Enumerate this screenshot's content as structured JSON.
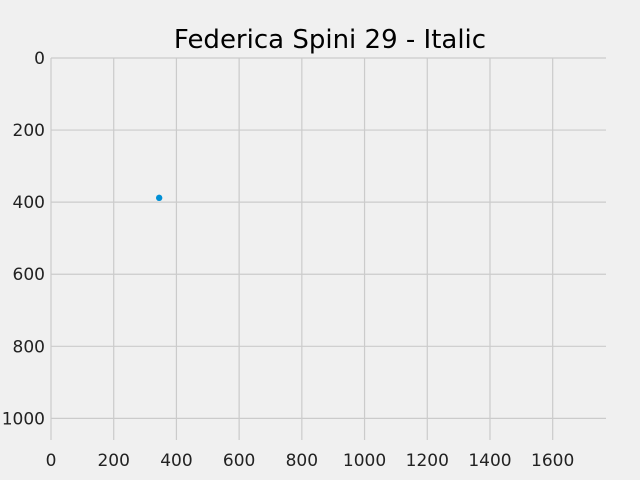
{
  "chart_data": {
    "type": "scatter",
    "title": "Federica Spini 29 - Italic",
    "xlabel": "",
    "ylabel": "",
    "xlim": [
      0,
      1770
    ],
    "ylim": [
      1060,
      0
    ],
    "y_inverted": true,
    "grid": true,
    "x_ticks": [
      "0",
      "200",
      "400",
      "600",
      "800",
      "1000",
      "1200",
      "1400",
      "1600"
    ],
    "y_ticks": [
      "0",
      "200",
      "400",
      "600",
      "800",
      "1000"
    ],
    "series": [
      {
        "points": [
          {
            "x": 345,
            "y": 388
          }
        ]
      }
    ],
    "colors": {
      "background": "#f0f0f0",
      "grid": "#cbcbcb",
      "marker": "#008fd5"
    }
  }
}
